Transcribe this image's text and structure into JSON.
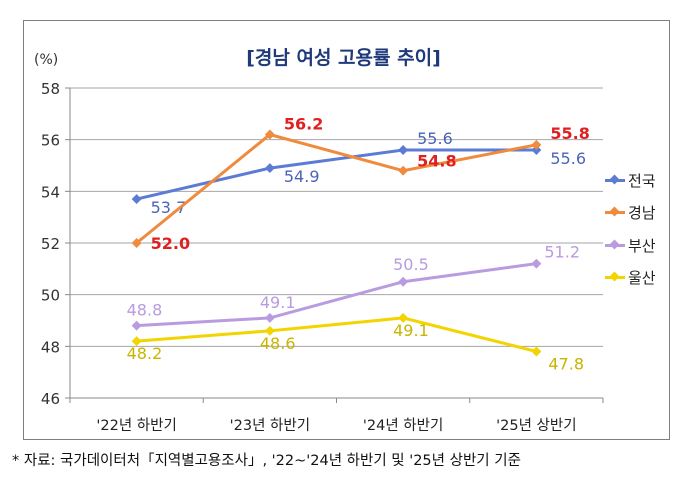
{
  "chart_data": {
    "type": "line",
    "title": "[경남 여성 고용률 추이]",
    "ylabel": "(%)",
    "ylim": [
      46,
      58
    ],
    "yticks": [
      46,
      48,
      50,
      52,
      54,
      56,
      58
    ],
    "grid": true,
    "legend_position": "right",
    "categories": [
      "'22년 하반기",
      "'23년 하반기",
      "'24년 하반기",
      "'25년 상반기"
    ],
    "series": [
      {
        "name": "전국",
        "values": [
          53.7,
          54.9,
          55.6,
          55.6
        ],
        "color": "#5b7bd5",
        "label_color": "#4a64b8"
      },
      {
        "name": "경남",
        "values": [
          52.0,
          56.2,
          54.8,
          55.8
        ],
        "color": "#f08a3c",
        "label_color": "#e02020"
      },
      {
        "name": "부산",
        "values": [
          48.8,
          49.1,
          50.5,
          51.2
        ],
        "color": "#b99be0",
        "label_color": "#b99be0"
      },
      {
        "name": "울산",
        "values": [
          48.2,
          48.6,
          49.1,
          47.8
        ],
        "color": "#f2d500",
        "label_color": "#c9b400"
      }
    ]
  },
  "source": "* 자료: 국가데이터처「지역별고용조사」, '22~'24년 하반기 및 '25년 상반기 기준"
}
